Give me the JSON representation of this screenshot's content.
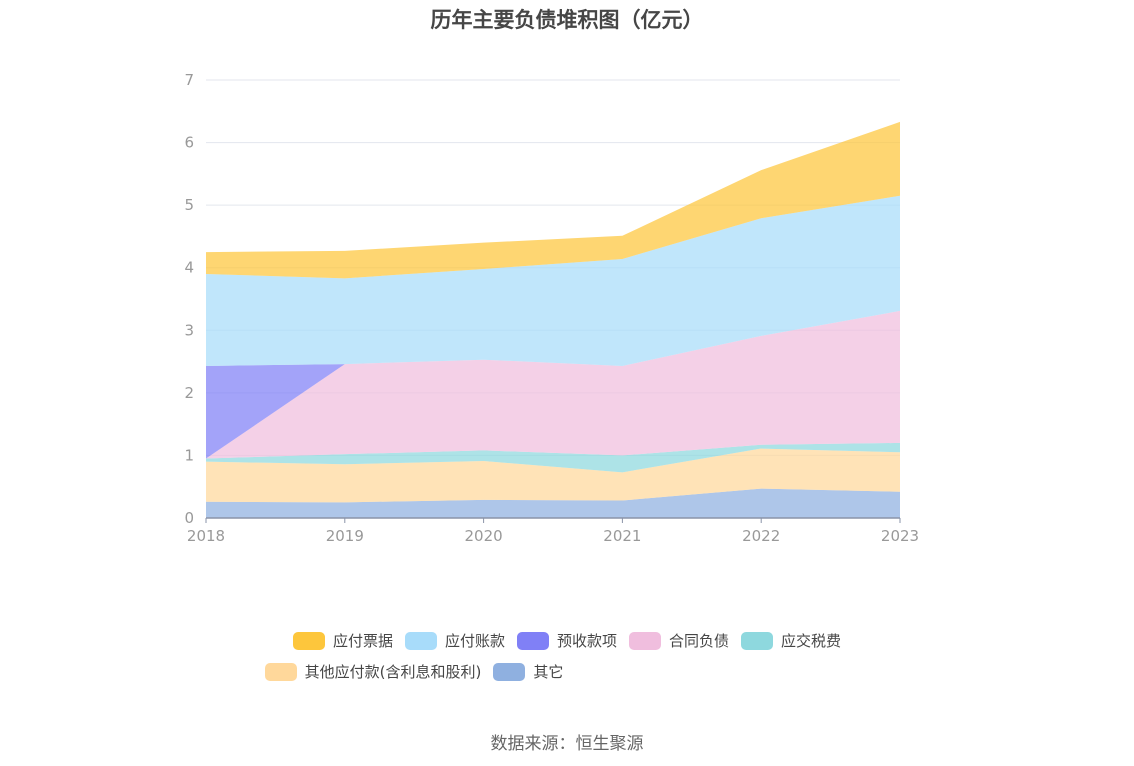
{
  "source": "数据来源：恒生聚源",
  "chart_data": {
    "type": "area",
    "stacked": true,
    "title": "历年主要负债堆积图（亿元）",
    "x": [
      "2018",
      "2019",
      "2020",
      "2021",
      "2022",
      "2023"
    ],
    "ylim": [
      0,
      7
    ],
    "yticks": [
      0,
      1,
      2,
      3,
      4,
      5,
      6,
      7
    ],
    "grid": true,
    "legend_position": "bottom",
    "series": [
      {
        "name": "其它",
        "color": "#8fb0e0",
        "values": [
          0.26,
          0.25,
          0.29,
          0.28,
          0.47,
          0.42
        ]
      },
      {
        "name": "其他应付款(含利息和股利)",
        "color": "#ffd89b",
        "values": [
          0.64,
          0.61,
          0.62,
          0.45,
          0.64,
          0.63
        ]
      },
      {
        "name": "应交税费",
        "color": "#8ed8de",
        "values": [
          0.05,
          0.16,
          0.17,
          0.27,
          0.06,
          0.15
        ]
      },
      {
        "name": "合同负债",
        "color": "#f0bede",
        "values": [
          0.0,
          1.44,
          1.45,
          1.43,
          1.74,
          2.11
        ]
      },
      {
        "name": "预收款项",
        "color": "#8080f6",
        "values": [
          1.48,
          0.0,
          0.0,
          0.0,
          0.0,
          0.0
        ]
      },
      {
        "name": "应付账款",
        "color": "#a8dcfa",
        "values": [
          1.47,
          1.37,
          1.45,
          1.71,
          1.88,
          1.84
        ]
      },
      {
        "name": "应付票据",
        "color": "#fdc63c",
        "values": [
          0.35,
          0.44,
          0.42,
          0.37,
          0.77,
          1.18
        ]
      }
    ]
  },
  "legend": [
    [
      {
        "name": "应付票据",
        "color": "#fdc63c"
      },
      {
        "name": "应付账款",
        "color": "#a8dcfa"
      },
      {
        "name": "预收款项",
        "color": "#8080f6"
      },
      {
        "name": "合同负债",
        "color": "#f0bede"
      },
      {
        "name": "应交税费",
        "color": "#8ed8de"
      }
    ],
    [
      {
        "name": "其他应付款(含利息和股利)",
        "color": "#ffd89b"
      },
      {
        "name": "其它",
        "color": "#8fb0e0"
      }
    ]
  ]
}
